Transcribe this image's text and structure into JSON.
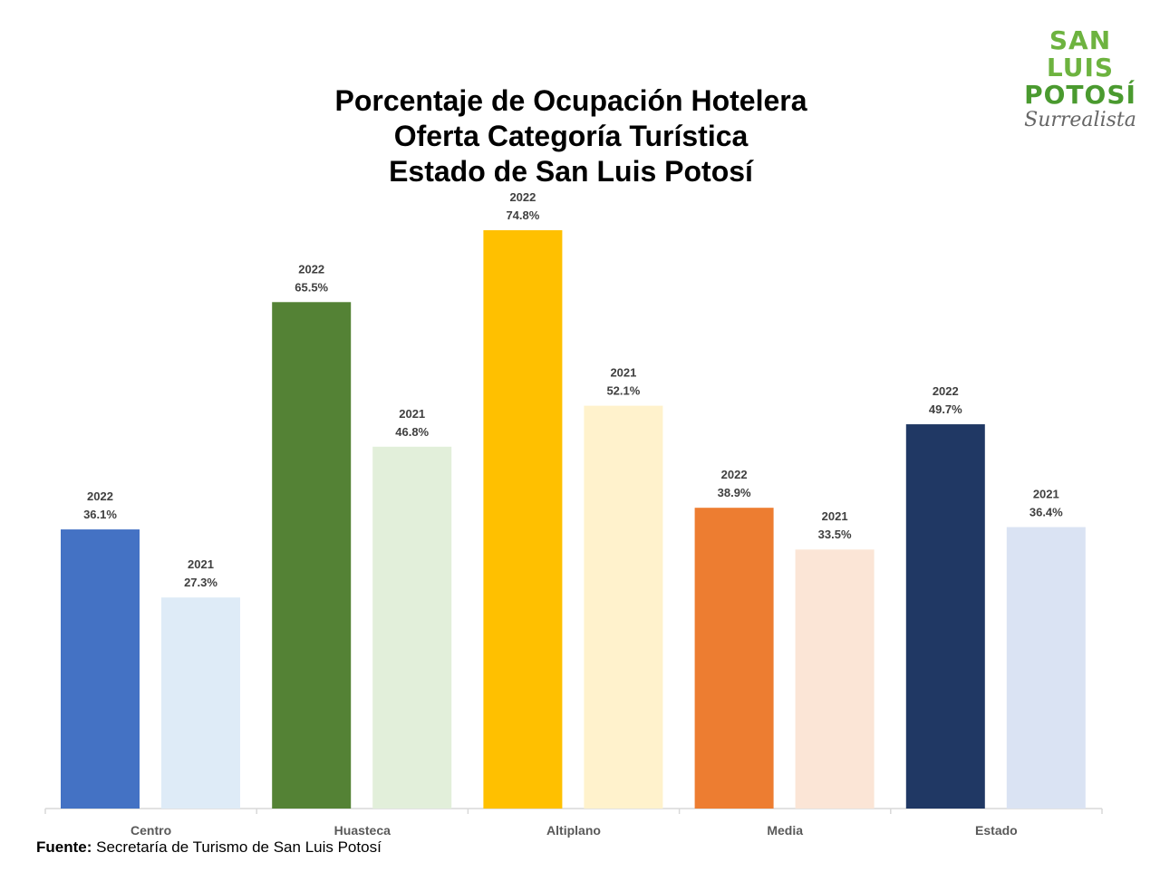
{
  "logo": {
    "line1": "SAN LUIS",
    "line2": "POTOSÍ",
    "line3": "Surrealista"
  },
  "source": {
    "label": "Fuente:",
    "text": "Secretaría de Turismo de San Luis Potosí"
  },
  "chart_data": {
    "type": "bar",
    "title": [
      "Porcentaje de Ocupación Hotelera",
      "Oferta Categoría Turística",
      "Estado de San Luis Potosí"
    ],
    "categories": [
      "Centro",
      "Huasteca",
      "Altiplano",
      "Media",
      "Estado"
    ],
    "series": [
      {
        "name": "2022",
        "values": [
          36.1,
          65.5,
          74.8,
          38.9,
          49.7
        ],
        "colors": [
          "#4472c4",
          "#548235",
          "#ffc000",
          "#ed7d31",
          "#203864"
        ]
      },
      {
        "name": "2021",
        "values": [
          27.3,
          46.8,
          52.1,
          33.5,
          36.4
        ],
        "colors": [
          "#deebf7",
          "#e2efda",
          "#fff2cc",
          "#fbe5d6",
          "#dae3f3"
        ]
      }
    ],
    "value_suffix": "%",
    "ylim": [
      0,
      80
    ],
    "grid": false,
    "legend": "none"
  }
}
